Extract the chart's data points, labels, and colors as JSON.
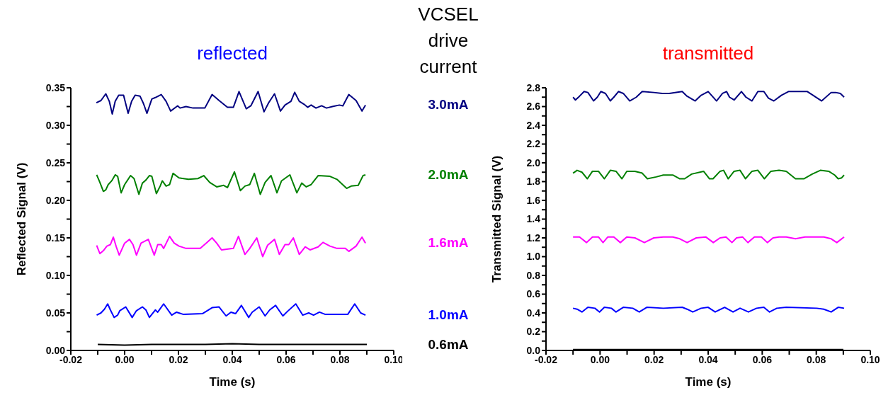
{
  "chart_data": [
    {
      "type": "line",
      "title": "reflected",
      "xlabel": "Time (s)",
      "ylabel": "Reflected Signal (V)",
      "legend": "right",
      "legend_title": "VCSEL drive current",
      "xlim": [
        -0.02,
        0.1
      ],
      "xticks": [
        {
          "value": -0.02,
          "label": "-0.02"
        },
        {
          "value": -0.01,
          "label": null
        },
        {
          "value": 0,
          "label": "0.00"
        },
        {
          "value": 0.01,
          "label": null
        },
        {
          "value": 0.02,
          "label": "0.02"
        },
        {
          "value": 0.03,
          "label": null
        },
        {
          "value": 0.04,
          "label": "0.04"
        },
        {
          "value": 0.05,
          "label": null
        },
        {
          "value": 0.06,
          "label": "0.06"
        },
        {
          "value": 0.07,
          "label": null
        },
        {
          "value": 0.08,
          "label": "0.08"
        },
        {
          "value": 0.09,
          "label": null
        },
        {
          "value": 0.1,
          "label": "0.10"
        }
      ],
      "ylim": [
        0,
        0.35
      ],
      "yticks": [
        {
          "value": 0,
          "label": "0.00"
        },
        {
          "value": 0.025,
          "label": null
        },
        {
          "value": 0.05,
          "label": "0.05"
        },
        {
          "value": 0.075,
          "label": null
        },
        {
          "value": 0.1,
          "label": "0.10"
        },
        {
          "value": 0.125,
          "label": null
        },
        {
          "value": 0.15,
          "label": "0.15"
        },
        {
          "value": 0.175,
          "label": null
        },
        {
          "value": 0.2,
          "label": "0.20"
        },
        {
          "value": 0.225,
          "label": null
        },
        {
          "value": 0.25,
          "label": "0.25"
        },
        {
          "value": 0.275,
          "label": null
        },
        {
          "value": 0.3,
          "label": "0.30"
        },
        {
          "value": 0.325,
          "label": null
        },
        {
          "value": 0.35,
          "label": "0.35"
        }
      ],
      "series": [
        {
          "name": "3.0mA",
          "color": "#000080",
          "x": [
            -0.0105,
            -0.0088,
            -0.007,
            -0.0057,
            -0.0046,
            -0.0035,
            -0.0022,
            -0.0004,
            0.0013,
            0.0026,
            0.0039,
            0.0057,
            0.007,
            0.0083,
            0.0101,
            0.0114,
            0.0136,
            0.0154,
            0.0171,
            0.0197,
            0.0206,
            0.0228,
            0.0254,
            0.0298,
            0.0325,
            0.0351,
            0.0382,
            0.0404,
            0.0425,
            0.0452,
            0.0469,
            0.0496,
            0.0518,
            0.0535,
            0.0557,
            0.0579,
            0.0596,
            0.0618,
            0.0632,
            0.0649,
            0.0667,
            0.068,
            0.0693,
            0.0711,
            0.0732,
            0.075,
            0.0772,
            0.0798,
            0.0811,
            0.0833,
            0.086,
            0.0882,
            0.0895
          ],
          "values": [
            0.33,
            0.333,
            0.342,
            0.332,
            0.315,
            0.332,
            0.34,
            0.34,
            0.316,
            0.332,
            0.34,
            0.339,
            0.329,
            0.316,
            0.335,
            0.337,
            0.341,
            0.332,
            0.319,
            0.326,
            0.323,
            0.325,
            0.323,
            0.323,
            0.341,
            0.333,
            0.324,
            0.324,
            0.345,
            0.322,
            0.326,
            0.345,
            0.318,
            0.33,
            0.342,
            0.319,
            0.327,
            0.332,
            0.344,
            0.332,
            0.328,
            0.324,
            0.327,
            0.323,
            0.326,
            0.323,
            0.325,
            0.327,
            0.326,
            0.341,
            0.333,
            0.319,
            0.327
          ]
        },
        {
          "name": "2.0mA",
          "color": "#008000",
          "x": [
            -0.0104,
            -0.0092,
            -0.0079,
            -0.007,
            -0.0061,
            -0.0048,
            -0.0035,
            -0.0026,
            -0.0013,
            0,
            0.0022,
            0.0035,
            0.0053,
            0.0066,
            0.0079,
            0.0092,
            0.0101,
            0.0118,
            0.0132,
            0.014,
            0.0154,
            0.0167,
            0.018,
            0.0202,
            0.0237,
            0.0272,
            0.0294,
            0.0316,
            0.0342,
            0.0368,
            0.0382,
            0.0408,
            0.043,
            0.0447,
            0.0465,
            0.0482,
            0.0504,
            0.0522,
            0.0544,
            0.0566,
            0.0583,
            0.0614,
            0.064,
            0.0658,
            0.0675,
            0.0693,
            0.0719,
            0.0763,
            0.0789,
            0.0825,
            0.0842,
            0.0868,
            0.0886,
            0.0895
          ],
          "values": [
            0.234,
            0.224,
            0.212,
            0.214,
            0.221,
            0.226,
            0.234,
            0.232,
            0.21,
            0.221,
            0.233,
            0.229,
            0.208,
            0.223,
            0.227,
            0.233,
            0.232,
            0.209,
            0.219,
            0.226,
            0.219,
            0.221,
            0.236,
            0.23,
            0.228,
            0.229,
            0.233,
            0.224,
            0.218,
            0.22,
            0.217,
            0.238,
            0.213,
            0.219,
            0.221,
            0.236,
            0.208,
            0.224,
            0.233,
            0.21,
            0.226,
            0.234,
            0.21,
            0.223,
            0.218,
            0.221,
            0.233,
            0.232,
            0.228,
            0.216,
            0.219,
            0.22,
            0.233,
            0.234
          ]
        },
        {
          "name": "1.6mA",
          "color": "#ff00ff",
          "x": [
            -0.0104,
            -0.0092,
            -0.0079,
            -0.0066,
            -0.0053,
            -0.0042,
            -0.0031,
            -0.002,
            0,
            0.0018,
            0.0031,
            0.0044,
            0.0061,
            0.0088,
            0.011,
            0.0123,
            0.0136,
            0.0145,
            0.0167,
            0.0184,
            0.0202,
            0.0228,
            0.0281,
            0.0303,
            0.0325,
            0.0342,
            0.036,
            0.0404,
            0.0423,
            0.0447,
            0.0465,
            0.0491,
            0.0513,
            0.0531,
            0.0557,
            0.0575,
            0.0596,
            0.061,
            0.0627,
            0.0649,
            0.0671,
            0.0689,
            0.0719,
            0.0737,
            0.0763,
            0.0789,
            0.082,
            0.0833,
            0.086,
            0.0882,
            0.0895
          ],
          "values": [
            0.14,
            0.129,
            0.133,
            0.139,
            0.141,
            0.151,
            0.138,
            0.127,
            0.143,
            0.148,
            0.141,
            0.127,
            0.143,
            0.148,
            0.127,
            0.141,
            0.141,
            0.136,
            0.152,
            0.143,
            0.139,
            0.136,
            0.136,
            0.143,
            0.15,
            0.143,
            0.134,
            0.136,
            0.152,
            0.128,
            0.136,
            0.15,
            0.125,
            0.14,
            0.148,
            0.128,
            0.141,
            0.141,
            0.15,
            0.128,
            0.138,
            0.134,
            0.138,
            0.144,
            0.139,
            0.136,
            0.136,
            0.132,
            0.139,
            0.151,
            0.143
          ]
        },
        {
          "name": "1.0mA",
          "color": "#0000ff",
          "x": [
            -0.0104,
            -0.0088,
            -0.0075,
            -0.0063,
            -0.0053,
            -0.0039,
            -0.0026,
            -0.0018,
            0.0004,
            0.0028,
            0.0044,
            0.0066,
            0.0079,
            0.0092,
            0.0114,
            0.0123,
            0.0145,
            0.0175,
            0.0193,
            0.0219,
            0.0289,
            0.0325,
            0.0351,
            0.0377,
            0.0395,
            0.0412,
            0.0434,
            0.0461,
            0.0474,
            0.05,
            0.0522,
            0.0539,
            0.0561,
            0.0588,
            0.0605,
            0.0636,
            0.0662,
            0.0684,
            0.0702,
            0.0724,
            0.0746,
            0.0829,
            0.0855,
            0.0877,
            0.0895
          ],
          "values": [
            0.047,
            0.05,
            0.055,
            0.062,
            0.054,
            0.044,
            0.047,
            0.053,
            0.058,
            0.044,
            0.053,
            0.058,
            0.054,
            0.044,
            0.054,
            0.051,
            0.062,
            0.047,
            0.051,
            0.048,
            0.049,
            0.057,
            0.058,
            0.046,
            0.051,
            0.049,
            0.06,
            0.044,
            0.051,
            0.058,
            0.046,
            0.054,
            0.06,
            0.046,
            0.052,
            0.062,
            0.047,
            0.05,
            0.047,
            0.051,
            0.048,
            0.048,
            0.062,
            0.05,
            0.047
          ]
        },
        {
          "name": "0.6mA",
          "color": "#000000",
          "x": [
            -0.01,
            0,
            0.01,
            0.02,
            0.03,
            0.04,
            0.05,
            0.06,
            0.07,
            0.08,
            0.09
          ],
          "values": [
            0.008,
            0.007,
            0.008,
            0.008,
            0.008,
            0.009,
            0.008,
            0.008,
            0.008,
            0.008,
            0.008
          ]
        }
      ]
    },
    {
      "type": "line",
      "title": "transmitted",
      "xlabel": "Time (s)",
      "ylabel": "Transmitted Signal (V)",
      "xlim": [
        -0.02,
        0.1
      ],
      "xticks": [
        {
          "value": -0.02,
          "label": "-0.02"
        },
        {
          "value": -0.01,
          "label": null
        },
        {
          "value": 0,
          "label": "0.00"
        },
        {
          "value": 0.01,
          "label": null
        },
        {
          "value": 0.02,
          "label": "0.02"
        },
        {
          "value": 0.03,
          "label": null
        },
        {
          "value": 0.04,
          "label": "0.04"
        },
        {
          "value": 0.05,
          "label": null
        },
        {
          "value": 0.06,
          "label": "0.06"
        },
        {
          "value": 0.07,
          "label": null
        },
        {
          "value": 0.08,
          "label": "0.08"
        },
        {
          "value": 0.09,
          "label": null
        },
        {
          "value": 0.1,
          "label": "0.10"
        }
      ],
      "ylim": [
        0,
        2.8
      ],
      "yticks": [
        {
          "value": 0,
          "label": "0.0"
        },
        {
          "value": 0.1,
          "label": null
        },
        {
          "value": 0.2,
          "label": "0.2"
        },
        {
          "value": 0.3,
          "label": null
        },
        {
          "value": 0.4,
          "label": "0.4"
        },
        {
          "value": 0.5,
          "label": null
        },
        {
          "value": 0.6,
          "label": "0.6"
        },
        {
          "value": 0.7,
          "label": null
        },
        {
          "value": 0.8,
          "label": "0.8"
        },
        {
          "value": 0.9,
          "label": null
        },
        {
          "value": 1,
          "label": "1.0"
        },
        {
          "value": 1.1,
          "label": null
        },
        {
          "value": 1.2,
          "label": "1.2"
        },
        {
          "value": 1.3,
          "label": null
        },
        {
          "value": 1.4,
          "label": "1.4"
        },
        {
          "value": 1.5,
          "label": null
        },
        {
          "value": 1.6,
          "label": "1.6"
        },
        {
          "value": 1.7,
          "label": null
        },
        {
          "value": 1.8,
          "label": "1.8"
        },
        {
          "value": 1.9,
          "label": null
        },
        {
          "value": 2,
          "label": "2.0"
        },
        {
          "value": 2.1,
          "label": null
        },
        {
          "value": 2.2,
          "label": "2.2"
        },
        {
          "value": 2.3,
          "label": null
        },
        {
          "value": 2.4,
          "label": "2.4"
        },
        {
          "value": 2.5,
          "label": null
        },
        {
          "value": 2.6,
          "label": "2.6"
        },
        {
          "value": 2.7,
          "label": null
        },
        {
          "value": 2.8,
          "label": "2.8"
        }
      ],
      "series": [
        {
          "color": "#000080",
          "x": [
            -0.01,
            -0.0091,
            -0.0076,
            -0.0059,
            -0.0045,
            -0.0024,
            -0.001,
            0.0003,
            0.002,
            0.0038,
            0.0051,
            0.0068,
            0.0086,
            0.011,
            0.0134,
            0.0156,
            0.0199,
            0.023,
            0.0256,
            0.0304,
            0.0322,
            0.0352,
            0.0374,
            0.04,
            0.0431,
            0.0453,
            0.0468,
            0.0479,
            0.0496,
            0.0523,
            0.054,
            0.0562,
            0.0584,
            0.0606,
            0.0623,
            0.0643,
            0.0671,
            0.0697,
            0.0767,
            0.0793,
            0.082,
            0.0855,
            0.0872,
            0.0889,
            0.0903
          ],
          "values": [
            2.7,
            2.67,
            2.71,
            2.76,
            2.75,
            2.66,
            2.7,
            2.76,
            2.74,
            2.66,
            2.7,
            2.76,
            2.74,
            2.66,
            2.7,
            2.76,
            2.75,
            2.74,
            2.74,
            2.76,
            2.71,
            2.66,
            2.72,
            2.76,
            2.66,
            2.74,
            2.76,
            2.7,
            2.67,
            2.76,
            2.7,
            2.66,
            2.76,
            2.76,
            2.69,
            2.66,
            2.72,
            2.76,
            2.76,
            2.71,
            2.66,
            2.75,
            2.75,
            2.74,
            2.7
          ]
        },
        {
          "color": "#008000",
          "x": [
            -0.01,
            -0.0085,
            -0.0067,
            -0.0047,
            -0.0028,
            -0.0006,
            0.0016,
            0.0038,
            0.0059,
            0.0081,
            0.0099,
            0.0129,
            0.0156,
            0.0175,
            0.0208,
            0.0234,
            0.0269,
            0.0295,
            0.0313,
            0.0339,
            0.0383,
            0.0405,
            0.0418,
            0.0444,
            0.0457,
            0.0474,
            0.0496,
            0.0518,
            0.0538,
            0.0562,
            0.0584,
            0.0608,
            0.0632,
            0.0662,
            0.0689,
            0.0723,
            0.0754,
            0.0785,
            0.0815,
            0.0846,
            0.0868,
            0.0881,
            0.0894,
            0.0903
          ],
          "values": [
            1.89,
            1.92,
            1.9,
            1.83,
            1.91,
            1.91,
            1.83,
            1.92,
            1.91,
            1.83,
            1.91,
            1.91,
            1.89,
            1.83,
            1.85,
            1.87,
            1.87,
            1.83,
            1.83,
            1.88,
            1.91,
            1.83,
            1.83,
            1.91,
            1.92,
            1.83,
            1.91,
            1.92,
            1.83,
            1.91,
            1.92,
            1.83,
            1.91,
            1.92,
            1.91,
            1.83,
            1.83,
            1.88,
            1.92,
            1.91,
            1.87,
            1.83,
            1.84,
            1.87
          ]
        },
        {
          "color": "#ff00ff",
          "x": [
            -0.01,
            -0.0076,
            -0.005,
            -0.0028,
            -0.0006,
            0.0011,
            0.0029,
            0.0051,
            0.0075,
            0.0099,
            0.0129,
            0.0164,
            0.0199,
            0.0234,
            0.0269,
            0.0295,
            0.0322,
            0.0356,
            0.0391,
            0.0419,
            0.0444,
            0.0466,
            0.0488,
            0.0505,
            0.0527,
            0.0547,
            0.0571,
            0.0597,
            0.0619,
            0.064,
            0.0662,
            0.0689,
            0.0723,
            0.0758,
            0.0785,
            0.0828,
            0.0855,
            0.0876,
            0.0903
          ],
          "values": [
            1.21,
            1.21,
            1.15,
            1.21,
            1.21,
            1.15,
            1.21,
            1.21,
            1.15,
            1.21,
            1.2,
            1.15,
            1.2,
            1.21,
            1.21,
            1.19,
            1.15,
            1.2,
            1.21,
            1.15,
            1.2,
            1.21,
            1.15,
            1.2,
            1.21,
            1.15,
            1.21,
            1.21,
            1.15,
            1.2,
            1.21,
            1.21,
            1.19,
            1.21,
            1.21,
            1.21,
            1.19,
            1.15,
            1.21
          ]
        },
        {
          "color": "#0000ff",
          "x": [
            -0.01,
            -0.0085,
            -0.0067,
            -0.0045,
            -0.0019,
            -0.0002,
            0.0016,
            0.0042,
            0.0059,
            0.0086,
            0.0121,
            0.0145,
            0.0173,
            0.0234,
            0.0304,
            0.0322,
            0.0343,
            0.0374,
            0.04,
            0.0426,
            0.0461,
            0.0492,
            0.0518,
            0.0549,
            0.0579,
            0.0606,
            0.0627,
            0.0654,
            0.0689,
            0.0802,
            0.0828,
            0.0855,
            0.0881,
            0.0903
          ],
          "values": [
            0.45,
            0.44,
            0.41,
            0.46,
            0.45,
            0.41,
            0.46,
            0.45,
            0.41,
            0.46,
            0.45,
            0.41,
            0.46,
            0.45,
            0.46,
            0.44,
            0.41,
            0.45,
            0.46,
            0.41,
            0.46,
            0.41,
            0.45,
            0.41,
            0.45,
            0.46,
            0.41,
            0.45,
            0.46,
            0.45,
            0.44,
            0.41,
            0.46,
            0.45
          ]
        },
        {
          "color": "#000000",
          "x": [
            -0.01,
            0,
            0.01,
            0.02,
            0.03,
            0.04,
            0.05,
            0.06,
            0.07,
            0.08,
            0.09
          ],
          "values": [
            0.01,
            0.01,
            0.01,
            0.01,
            0.01,
            0.01,
            0.01,
            0.01,
            0.01,
            0.01,
            0.01
          ]
        }
      ]
    }
  ]
}
